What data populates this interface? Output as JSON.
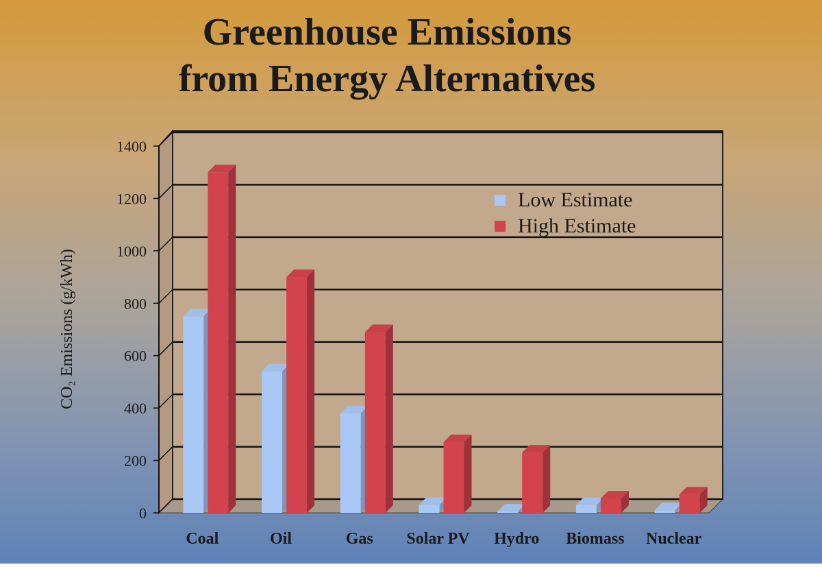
{
  "chart_data": {
    "type": "bar3d",
    "title": [
      "Greenhouse Emissions",
      "from Energy Alternatives"
    ],
    "y_label": "CO₂ Emissions (g/kWh)",
    "categories": [
      "Coal",
      "Oil",
      "Gas",
      "Solar PV",
      "Hydro",
      "Biomass",
      "Nuclear"
    ],
    "series": [
      {
        "name": "Low Estimate",
        "color": "#a9c8f5",
        "values": [
          750,
          540,
          380,
          30,
          5,
          30,
          10
        ]
      },
      {
        "name": "High Estimate",
        "color": "#d2434e",
        "values": [
          1300,
          900,
          690,
          270,
          230,
          55,
          70
        ]
      }
    ],
    "ylim": [
      0,
      1400
    ],
    "yticks": [
      0,
      200,
      400,
      600,
      800,
      1000,
      1200,
      1400
    ],
    "grid": true,
    "legend": "top-right"
  }
}
